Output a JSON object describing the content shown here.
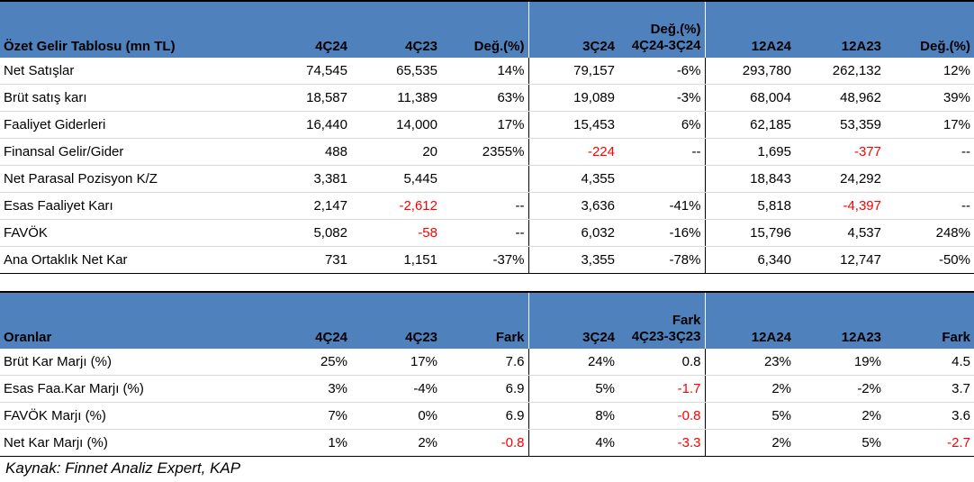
{
  "income": {
    "headers": [
      "Özet Gelir Tablosu (mn TL)",
      "4Ç24",
      "4Ç23",
      "Değ.(%)",
      "3Ç24",
      "Değ.(%)|4Ç24-3Ç24",
      "12A24",
      "12A23",
      "Değ.(%)"
    ],
    "rows": [
      {
        "label": "Net Satışlar",
        "values": [
          "74,545",
          "65,535",
          "14%",
          "79,157",
          "-6%",
          "293,780",
          "262,132",
          "12%"
        ],
        "neg": []
      },
      {
        "label": "Brüt satış karı",
        "values": [
          "18,587",
          "11,389",
          "63%",
          "19,089",
          "-3%",
          "68,004",
          "48,962",
          "39%"
        ],
        "neg": []
      },
      {
        "label": "Faaliyet Giderleri",
        "values": [
          "16,440",
          "14,000",
          "17%",
          "15,453",
          "6%",
          "62,185",
          "53,359",
          "17%"
        ],
        "neg": []
      },
      {
        "label": "Finansal Gelir/Gider",
        "values": [
          "488",
          "20",
          "2355%",
          "-224",
          "--",
          "1,695",
          "-377",
          "--"
        ],
        "neg": [
          3,
          6
        ]
      },
      {
        "label": "Net Parasal Pozisyon K/Z",
        "values": [
          "3,381",
          "5,445",
          "",
          "4,355",
          "",
          "18,843",
          "24,292",
          ""
        ],
        "neg": []
      },
      {
        "label": "Esas Faaliyet Karı",
        "values": [
          "2,147",
          "-2,612",
          "--",
          "3,636",
          "-41%",
          "5,818",
          "-4,397",
          "--"
        ],
        "neg": [
          1,
          6
        ]
      },
      {
        "label": "FAVÖK",
        "values": [
          "5,082",
          "-58",
          "--",
          "6,032",
          "-16%",
          "15,796",
          "4,537",
          "248%"
        ],
        "neg": [
          1
        ]
      },
      {
        "label": "Ana Ortaklık Net Kar",
        "values": [
          "731",
          "1,151",
          "-37%",
          "3,355",
          "-78%",
          "6,340",
          "12,747",
          "-50%"
        ],
        "neg": []
      }
    ]
  },
  "ratios": {
    "headers": [
      "Oranlar",
      "4Ç24",
      "4Ç23",
      "Fark",
      "3Ç24",
      "Fark|4Ç23-3Ç23",
      "12A24",
      "12A23",
      "Fark"
    ],
    "rows": [
      {
        "label": "Brüt Kar Marjı (%)",
        "values": [
          "25%",
          "17%",
          "7.6",
          "24%",
          "0.8",
          "23%",
          "19%",
          "4.5"
        ],
        "neg": []
      },
      {
        "label": "Esas Faa.Kar Marjı (%)",
        "values": [
          "3%",
          "-4%",
          "6.9",
          "5%",
          "-1.7",
          "2%",
          "-2%",
          "3.7"
        ],
        "neg": [
          4
        ]
      },
      {
        "label": "FAVÖK Marjı (%)",
        "values": [
          "7%",
          "0%",
          "6.9",
          "8%",
          "-0.8",
          "5%",
          "2%",
          "3.6"
        ],
        "neg": [
          4
        ]
      },
      {
        "label": "Net Kar Marjı (%)",
        "values": [
          "1%",
          "2%",
          "-0.8",
          "4%",
          "-3.3",
          "2%",
          "5%",
          "-2.7"
        ],
        "neg": [
          2,
          4,
          7
        ]
      }
    ]
  },
  "source": "Kaynak: Finnet Analiz Expert, KAP",
  "colors": {
    "header_bg": "#4f81bd",
    "negative": "#ff0000"
  }
}
